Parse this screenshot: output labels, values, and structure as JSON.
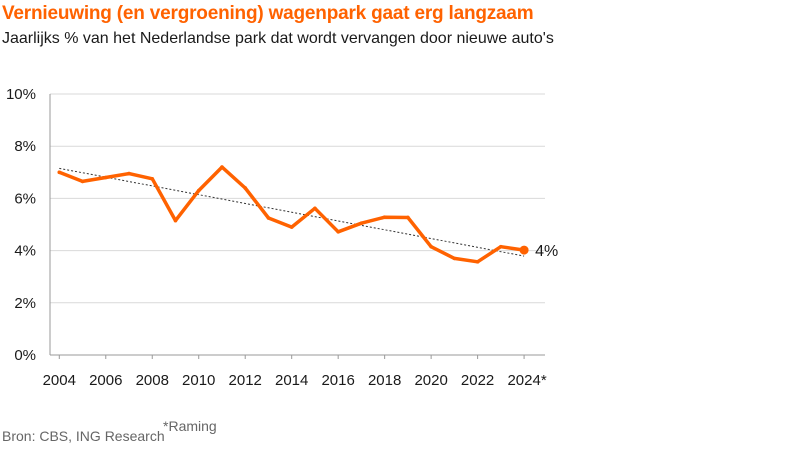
{
  "chart_data": {
    "type": "line",
    "title": "Vernieuwing (en vergroening) wagenpark gaat erg langzaam",
    "subtitle": "Jaarlijks % van het Nederlandse park dat wordt vervangen door nieuwe auto's",
    "xlabel": "",
    "ylabel": "",
    "ylim": [
      0,
      10
    ],
    "yticks": [
      "0%",
      "2%",
      "4%",
      "6%",
      "8%",
      "10%"
    ],
    "xticks": [
      "2004",
      "2006",
      "2008",
      "2010",
      "2012",
      "2014",
      "2016",
      "2018",
      "2020",
      "2022",
      "2024*"
    ],
    "x": [
      2004,
      2005,
      2006,
      2007,
      2008,
      2009,
      2010,
      2011,
      2012,
      2013,
      2014,
      2015,
      2016,
      2017,
      2018,
      2019,
      2020,
      2021,
      2022,
      2023,
      2024
    ],
    "series": [
      {
        "values": [
          7.0,
          6.65,
          6.8,
          6.95,
          6.75,
          5.15,
          6.3,
          7.2,
          6.4,
          5.25,
          4.9,
          5.62,
          4.72,
          5.05,
          5.28,
          5.27,
          4.15,
          3.7,
          3.57,
          4.15,
          4.02
        ],
        "color": "#ff6200"
      }
    ],
    "trendline": {
      "style": "dotted",
      "color": "#333333"
    },
    "end_label": "4%",
    "grid": true,
    "source": "Bron: CBS, ING Research",
    "footnote_marker": "*",
    "footnote": "Raming"
  }
}
